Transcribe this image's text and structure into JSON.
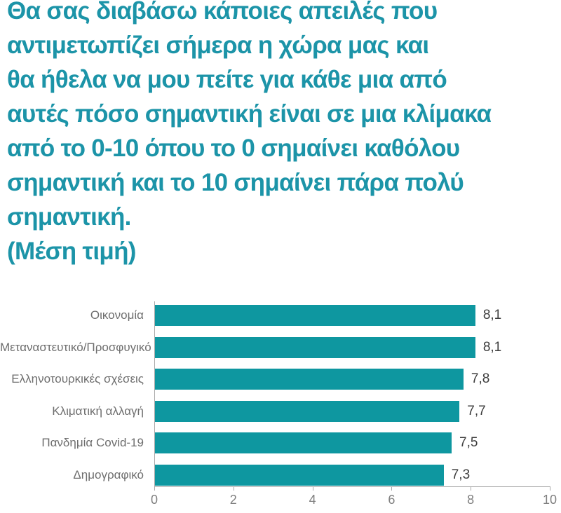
{
  "title": {
    "text": "Θα σας διαβάσω κάποιες απειλές που\nαντιμετωπίζει σήμερα η χώρα μας και\nθα ήθελα να μου πείτε για κάθε μια από\nαυτές πόσο σημαντική είναι σε μια κλίμακα\nαπό το 0-10 όπου το 0 σημαίνει καθόλου\nσημαντική και το 10 σημαίνει πάρα πολύ\nσημαντική.",
    "subtitle": "(Μέση τιμή)"
  },
  "chart_data": {
    "type": "bar",
    "orientation": "horizontal",
    "title": "Θα σας διαβάσω κάποιες απειλές που αντιμετωπίζει σήμερα η χώρα μας και θα ήθελα να μου πείτε για κάθε μια από αυτές πόσο σημαντική είναι σε μια κλίμακα από το 0-10 όπου το 0 σημαίνει καθόλου σημαντική και το 10 σημαίνει πάρα πολύ σημαντική. (Μέση τιμή)",
    "categories": [
      "Οικονομία",
      "Μεταναστευτικό/Προσφυγικό",
      "Ελληνοτουρκικές σχέσεις",
      "Κλιματική αλλαγή",
      "Πανδημία Covid-19",
      "Δημογραφικό"
    ],
    "values": [
      8.1,
      8.1,
      7.8,
      7.7,
      7.5,
      7.3
    ],
    "value_labels": [
      "8,1",
      "8,1",
      "7,8",
      "7,7",
      "7,5",
      "7,3"
    ],
    "xlabel": "",
    "ylabel": "",
    "xlim": [
      0,
      10
    ],
    "xticks": [
      0,
      2,
      4,
      6,
      8,
      10
    ],
    "xtick_labels": [
      "0",
      "2",
      "4",
      "6",
      "8",
      "10"
    ],
    "grid": false,
    "legend": false,
    "colors": {
      "bar": "#0e97a0",
      "title": "#1c94a8",
      "category_label": "#6e6e6e",
      "value_label": "#3d3d3d",
      "axis": "#a9a9a9",
      "tick_label": "#7f7f7f"
    }
  }
}
